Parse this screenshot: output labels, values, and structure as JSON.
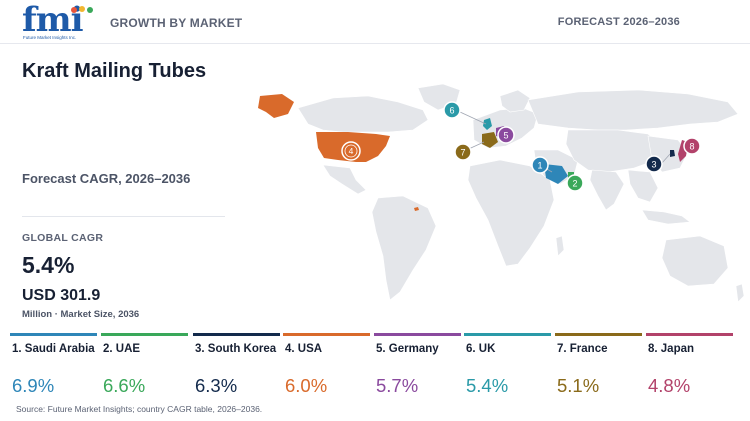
{
  "header": {
    "logo_text": "fmi",
    "logo_subtext": "Future Market Insights Inc.",
    "section_label": "GROWTH BY MARKET",
    "forecast_label": "FORECAST 2026–2036"
  },
  "title": "Kraft Mailing Tubes",
  "cagr_label": "Forecast CAGR, 2026–2036",
  "global": {
    "label": "GLOBAL CAGR",
    "value": "5.4%",
    "market_size": "USD 301.9",
    "market_note": "Million · Market Size, 2036"
  },
  "map_markers": [
    {
      "num": "1",
      "color": "#2e86b8"
    },
    {
      "num": "2",
      "color": "#3aa85a"
    },
    {
      "num": "3",
      "color": "#132a4c"
    },
    {
      "num": "4",
      "color": "#d96a2b"
    },
    {
      "num": "5",
      "color": "#8a4a9e"
    },
    {
      "num": "6",
      "color": "#2a9aa8"
    },
    {
      "num": "7",
      "color": "#8a6a1a"
    },
    {
      "num": "8",
      "color": "#b2426a"
    }
  ],
  "countries": [
    {
      "name": "1. Saudi Arabia",
      "value": "6.9%",
      "color": "#2e86b8"
    },
    {
      "name": "2. UAE",
      "value": "6.6%",
      "color": "#3aa85a"
    },
    {
      "name": "3. South Korea",
      "value": "6.3%",
      "color": "#132a4c"
    },
    {
      "name": "4. USA",
      "value": "6.0%",
      "color": "#d96a2b"
    },
    {
      "name": "5. Germany",
      "value": "5.7%",
      "color": "#8a4a9e"
    },
    {
      "name": "6. UK",
      "value": "5.4%",
      "color": "#2a9aa8"
    },
    {
      "name": "7. France",
      "value": "5.1%",
      "color": "#8a6a1a"
    },
    {
      "name": "8. Japan",
      "value": "4.8%",
      "color": "#b2426a"
    }
  ],
  "source": "Source: Future Market Insights; country CAGR table, 2026–2036."
}
